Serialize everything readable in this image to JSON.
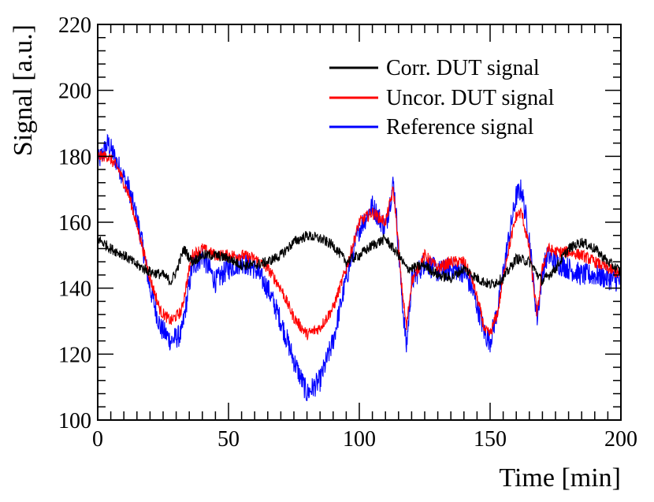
{
  "chart_data": {
    "type": "line",
    "title": "",
    "xlabel": "Time [min]",
    "ylabel": "Signal [a.u.]",
    "xlim": [
      0,
      200
    ],
    "ylim": [
      100,
      220
    ],
    "xticks": [
      0,
      50,
      100,
      150,
      200
    ],
    "yticks": [
      100,
      120,
      140,
      160,
      180,
      200,
      220
    ],
    "grid": false,
    "legend_position": "top-right",
    "series": [
      {
        "name": "Reference signal",
        "color": "#0000ff",
        "noise": 3.5,
        "x": [
          0,
          4,
          8,
          12,
          16,
          20,
          24,
          28,
          32,
          36,
          40,
          45,
          50,
          55,
          60,
          65,
          70,
          75,
          80,
          85,
          90,
          95,
          100,
          105,
          110,
          113,
          114,
          116,
          118,
          120,
          125,
          130,
          135,
          140,
          143,
          146,
          148,
          150,
          153,
          156,
          160,
          162,
          165,
          167,
          168,
          170,
          172,
          175,
          180,
          185,
          190,
          195,
          200
        ],
        "y": [
          178,
          184,
          177,
          170,
          158,
          140,
          128,
          124,
          126,
          146,
          150,
          142,
          146,
          148,
          146,
          140,
          130,
          118,
          108,
          112,
          124,
          143,
          158,
          165,
          158,
          172,
          164,
          140,
          122,
          142,
          148,
          145,
          146,
          145,
          140,
          132,
          126,
          124,
          134,
          150,
          168,
          170,
          155,
          138,
          131,
          145,
          150,
          148,
          146,
          144,
          144,
          143,
          142
        ]
      },
      {
        "name": "Uncor. DUT signal",
        "color": "#ff0000",
        "noise": 1.8,
        "x": [
          0,
          4,
          8,
          12,
          16,
          20,
          24,
          28,
          32,
          36,
          40,
          45,
          50,
          55,
          60,
          65,
          70,
          75,
          80,
          85,
          90,
          95,
          100,
          105,
          110,
          113,
          114,
          116,
          118,
          120,
          125,
          130,
          135,
          140,
          143,
          146,
          148,
          150,
          153,
          156,
          160,
          162,
          165,
          167,
          168,
          170,
          172,
          175,
          180,
          185,
          190,
          195,
          200
        ],
        "y": [
          180,
          180,
          176,
          168,
          156,
          143,
          133,
          130,
          133,
          150,
          152,
          150,
          150,
          150,
          149,
          146,
          140,
          131,
          126,
          128,
          134,
          146,
          160,
          163,
          160,
          170,
          162,
          142,
          128,
          142,
          150,
          146,
          148,
          148,
          143,
          134,
          127,
          126,
          133,
          148,
          162,
          163,
          152,
          138,
          132,
          146,
          152,
          151,
          151,
          150,
          148,
          146,
          144
        ]
      },
      {
        "name": "Corr. DUT signal",
        "color": "#000000",
        "noise": 1.6,
        "x": [
          0,
          5,
          10,
          15,
          20,
          25,
          28,
          30,
          33,
          36,
          40,
          45,
          50,
          55,
          60,
          65,
          70,
          75,
          80,
          85,
          90,
          95,
          100,
          105,
          110,
          115,
          118,
          120,
          125,
          130,
          135,
          140,
          145,
          150,
          155,
          160,
          165,
          170,
          175,
          180,
          185,
          190,
          195,
          200
        ],
        "y": [
          155,
          152,
          150,
          147,
          145,
          144,
          142,
          145,
          152,
          148,
          150,
          150,
          149,
          147,
          147,
          148,
          150,
          154,
          156,
          155,
          153,
          148,
          150,
          153,
          155,
          150,
          146,
          146,
          147,
          144,
          143,
          146,
          143,
          141,
          143,
          149,
          148,
          142,
          146,
          152,
          154,
          152,
          148,
          145
        ]
      }
    ],
    "legend": [
      {
        "label": "Corr. DUT signal",
        "color": "#000000"
      },
      {
        "label": "Uncor. DUT signal",
        "color": "#ff0000"
      },
      {
        "label": "Reference signal",
        "color": "#0000ff"
      }
    ]
  }
}
